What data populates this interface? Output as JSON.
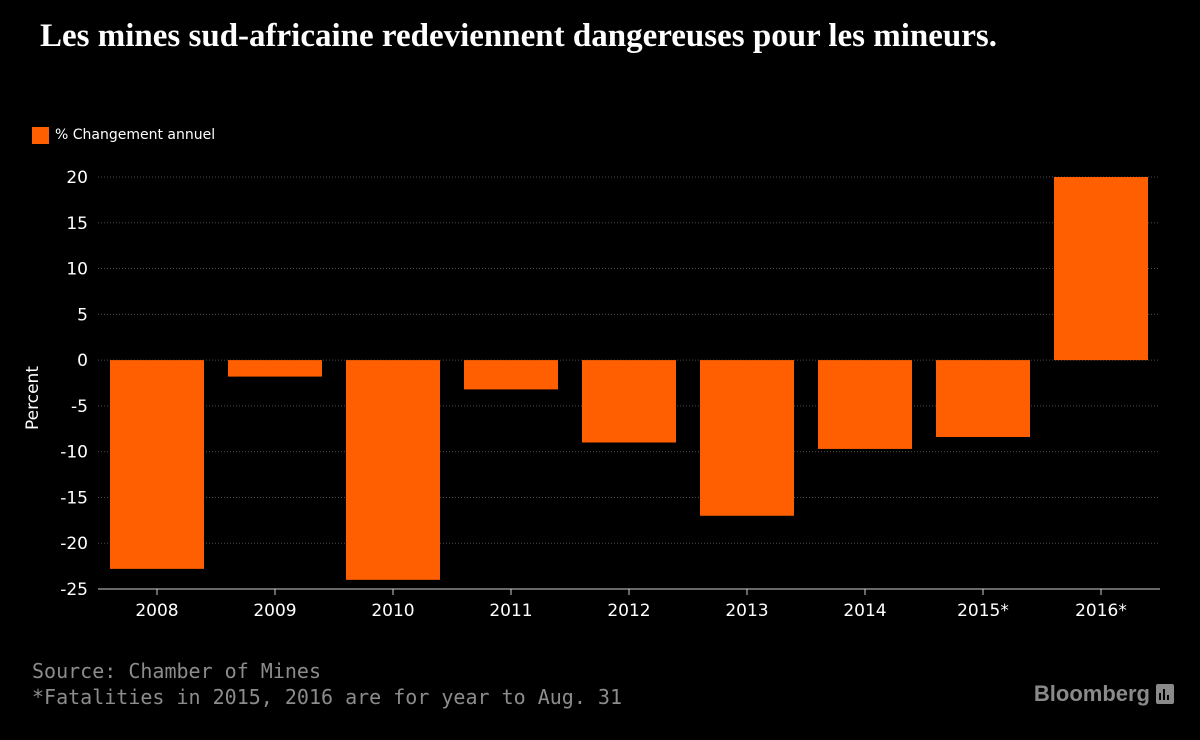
{
  "header": {
    "title": "Les mines sud-africaine redeviennent dangereuses pour les mineurs."
  },
  "colors": {
    "background": "#000000",
    "bar": "#ff5f00",
    "text": "#ffffff",
    "muted_text": "#8c8c8c",
    "grid": "#4a4a4a",
    "brand": "#8a8a8a"
  },
  "chart_data": {
    "type": "bar",
    "title": "",
    "xlabel": "",
    "ylabel": "Percent",
    "categories": [
      "2008",
      "2009",
      "2010",
      "2011",
      "2012",
      "2013",
      "2014",
      "2015*",
      "2016*"
    ],
    "series": [
      {
        "name": "% Changement annuel",
        "values": [
          -22.8,
          -1.8,
          -24.0,
          -3.2,
          -9.0,
          -17.0,
          -9.7,
          -8.4,
          20.0
        ]
      }
    ],
    "ylim": [
      -25,
      20
    ],
    "yticks": [
      20,
      15,
      10,
      5,
      0,
      -5,
      -10,
      -15,
      -20,
      -25
    ],
    "grid": true,
    "legend_position": "top-left"
  },
  "footer": {
    "source": "Source: Chamber of Mines",
    "note": "*Fatalities in 2015, 2016 are for year to Aug. 31",
    "brand": "Bloomberg",
    "brand_icon": "bloomberg-chart-icon"
  }
}
